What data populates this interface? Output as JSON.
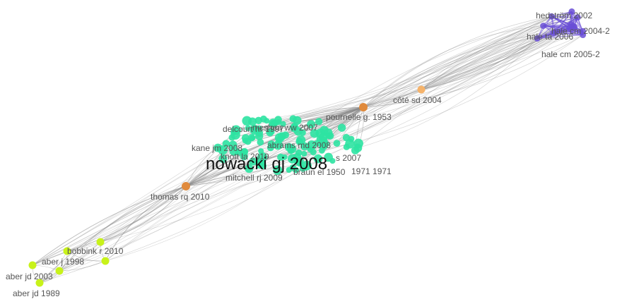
{
  "colors": {
    "background": "#ffffff",
    "edge": "#8a8a8a",
    "green_cluster": "#2de3a2",
    "purple_cluster": "#6a4fd6",
    "lime_cluster": "#c8f21a",
    "orange_node": "#e08a3c",
    "light_orange_node": "#f5b36b"
  },
  "labels": {
    "hedstrom": "hedström 2002",
    "hale_2004": "hale cm 2004-2",
    "hale_ta": "hale ta 2006",
    "hale_2005": "hale cm 2005-2",
    "cote": "côté sd 2004",
    "pournelle": "pournelle g. 1953",
    "delcourt": "delcourt hr 1997",
    "mcshea": "mcshea ww 2007",
    "kane": "kane jm 2008",
    "abrams": "abrams md 2008",
    "knott": "knott la 2019",
    "s_2007": "s 2007",
    "nowacki": "nowacki gj 2008",
    "braun": "braun el 1950",
    "year_1971": "1971 1971",
    "mitchell": "mitchell rj 2009",
    "thomas": "thomas rq 2010",
    "bobbink": "bobbink r 2010",
    "aber_j": "aber j 1998",
    "aber_jd_2003": "aber jd 2003",
    "aber_jd_1989": "aber jd 1989"
  }
}
